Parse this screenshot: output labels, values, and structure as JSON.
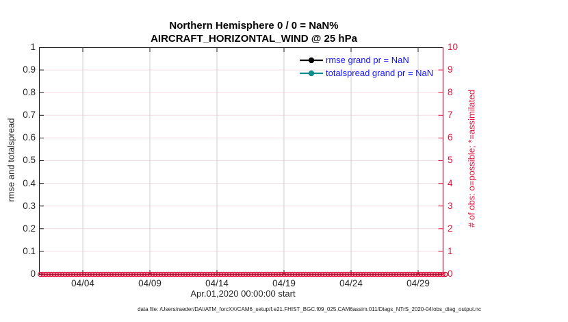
{
  "title": {
    "line1": "Northern Hemisphere 0 / 0 = NaN%",
    "line2": "AIRCRAFT_HORIZONTAL_WIND @ 25 hPa"
  },
  "left_axis": {
    "label": "rmse and totalspread",
    "ticks": [
      "1",
      "0.9",
      "0.8",
      "0.7",
      "0.6",
      "0.5",
      "0.4",
      "0.3",
      "0.2",
      "0.1",
      "0"
    ]
  },
  "right_axis": {
    "label": "# of obs: o=possible; *=assimilated",
    "ticks": [
      "10",
      "9",
      "8",
      "7",
      "6",
      "5",
      "4",
      "3",
      "2",
      "1",
      "0"
    ]
  },
  "x_axis": {
    "label": "Apr.01,2020 00:00:00 start",
    "ticks": [
      "04/04",
      "04/09",
      "04/14",
      "04/19",
      "04/24",
      "04/29"
    ]
  },
  "legend": {
    "text_color": "#1414ff",
    "items": [
      {
        "label": "rmse grand pr = NaN",
        "color": "#000000"
      },
      {
        "label": "totalspread grand pr = NaN",
        "color": "#0d8d8d"
      }
    ]
  },
  "footer": "data file: /Users/raeder/DAI/ATM_forcXX/CAM6_setup/f.e21.FHIST_BGC.f09_025.CAM6assim.011/Diags_NTrS_2020-04/obs_diag_output.nc",
  "colors": {
    "obs_axis": "#dc143c",
    "grid_horizontal": "#f6dbe1",
    "grid_vertical": "#cfcfcf",
    "spine": "#1a1a1a"
  },
  "chart_data": {
    "type": "line",
    "title": "Northern Hemisphere 0 / 0 = NaN%",
    "subtitle": "AIRCRAFT_HORIZONTAL_WIND @ 25 hPa",
    "x": {
      "label": "Apr.01,2020 00:00:00 start",
      "start": "2020-04-01 00:00:00",
      "end": "2020-04-30",
      "tick_labels": [
        "04/04",
        "04/09",
        "04/14",
        "04/19",
        "04/24",
        "04/29"
      ]
    },
    "left_y": {
      "label": "rmse and totalspread",
      "range": [
        0,
        1
      ],
      "tick_step": 0.1
    },
    "right_y": {
      "label": "# of obs: o=possible; *=assimilated",
      "range": [
        0,
        10
      ],
      "tick_step": 1
    },
    "grid": true,
    "legend_position": "inside-top-right",
    "series": [
      {
        "name": "rmse grand pr = NaN",
        "axis": "left",
        "color": "#000000",
        "marker": "filled-circle",
        "values": "all NaN — no curve plotted"
      },
      {
        "name": "totalspread grand pr = NaN",
        "axis": "left",
        "color": "#0d8d8d",
        "marker": "filled-circle",
        "values": "all NaN — no curve plotted"
      },
      {
        "name": "# of obs possible (o)",
        "axis": "right",
        "color": "#dc143c",
        "marker": "open-circle",
        "values": "0 at every observation time Apr 01 - Apr 30 2020"
      },
      {
        "name": "# of obs assimilated (*)",
        "axis": "right",
        "color": "#dc143c",
        "marker": "asterisk",
        "values": "0 at every observation time Apr 01 - Apr 30 2020"
      }
    ]
  }
}
